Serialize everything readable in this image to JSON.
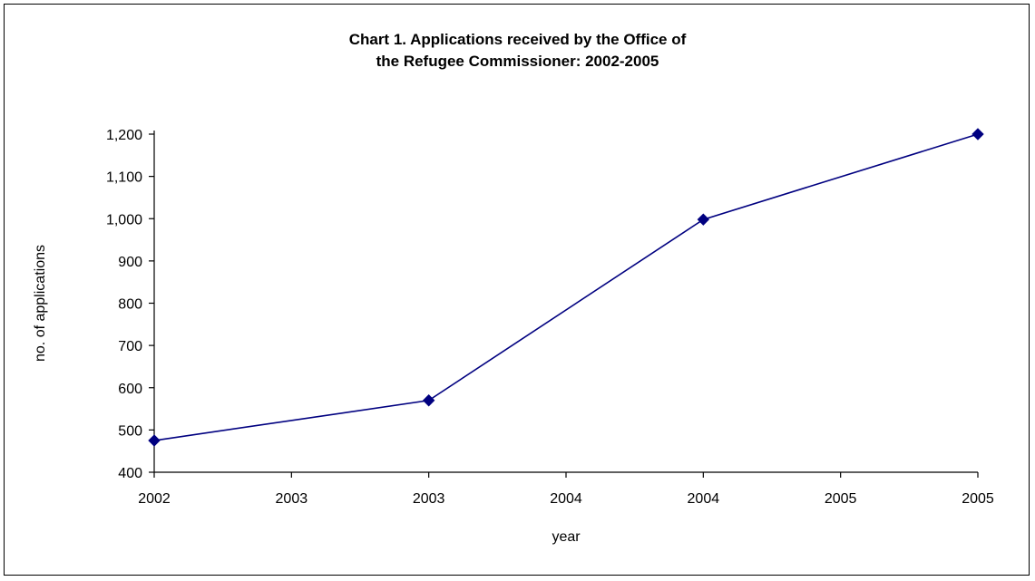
{
  "chart_data": {
    "type": "line",
    "title_lines": [
      "Chart 1. Applications received by the Office of",
      "the Refugee Commissioner: 2002-2005"
    ],
    "xlabel": "year",
    "ylabel": "no. of applications",
    "x_tick_labels": [
      "2002",
      "2003",
      "2003",
      "2004",
      "2004",
      "2005",
      "2005"
    ],
    "ylim": [
      400,
      1200
    ],
    "y_ticks": [
      400,
      500,
      600,
      700,
      800,
      900,
      1000,
      1100,
      1200
    ],
    "y_tick_labels": [
      "400",
      "500",
      "600",
      "700",
      "800",
      "900",
      "1,000",
      "1,100",
      "1,200"
    ],
    "series": [
      {
        "x": [
          2002,
          2003,
          2004,
          2005
        ],
        "values": [
          475,
          570,
          998,
          1200
        ],
        "color": "#000080",
        "marker": "diamond"
      }
    ],
    "grid": false,
    "legend": "none"
  }
}
